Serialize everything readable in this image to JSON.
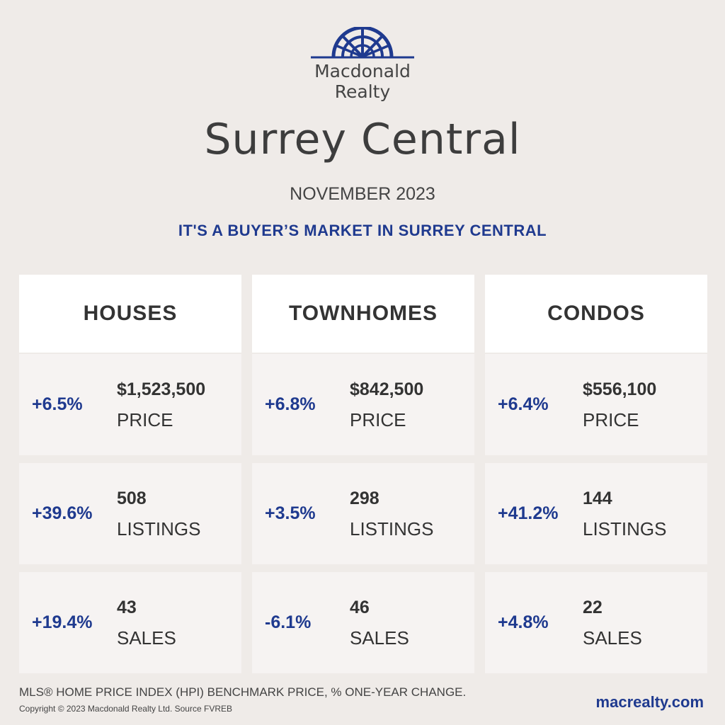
{
  "brand": {
    "name_line1": "Macdonald",
    "name_line2": "Realty",
    "color": "#1f3a8f"
  },
  "title": "Surrey Central",
  "month": "NOVEMBER 2023",
  "headline": "IT'S A BUYER’S MARKET IN SURREY CENTRAL",
  "columns": [
    {
      "name": "HOUSES",
      "rows": [
        {
          "pct": "+6.5%",
          "value": "$1,523,500",
          "label": "PRICE"
        },
        {
          "pct": "+39.6%",
          "value": "508",
          "label": "LISTINGS"
        },
        {
          "pct": "+19.4%",
          "value": "43",
          "label": "SALES"
        }
      ]
    },
    {
      "name": "TOWNHOMES",
      "rows": [
        {
          "pct": "+6.8%",
          "value": "$842,500",
          "label": "PRICE"
        },
        {
          "pct": "+3.5%",
          "value": "298",
          "label": "LISTINGS"
        },
        {
          "pct": "-6.1%",
          "value": "46",
          "label": "SALES"
        }
      ]
    },
    {
      "name": "CONDOS",
      "rows": [
        {
          "pct": "+6.4%",
          "value": "$556,100",
          "label": "PRICE"
        },
        {
          "pct": "+41.2%",
          "value": "144",
          "label": "LISTINGS"
        },
        {
          "pct": "+4.8%",
          "value": "22",
          "label": "SALES"
        }
      ]
    }
  ],
  "footer": {
    "note": "MLS® HOME PRICE INDEX (HPI) BENCHMARK PRICE, % ONE-YEAR CHANGE.",
    "copyright": "Copyright © 2023 Macdonald Realty Ltd. Source FVREB",
    "website": "macrealty.com"
  }
}
